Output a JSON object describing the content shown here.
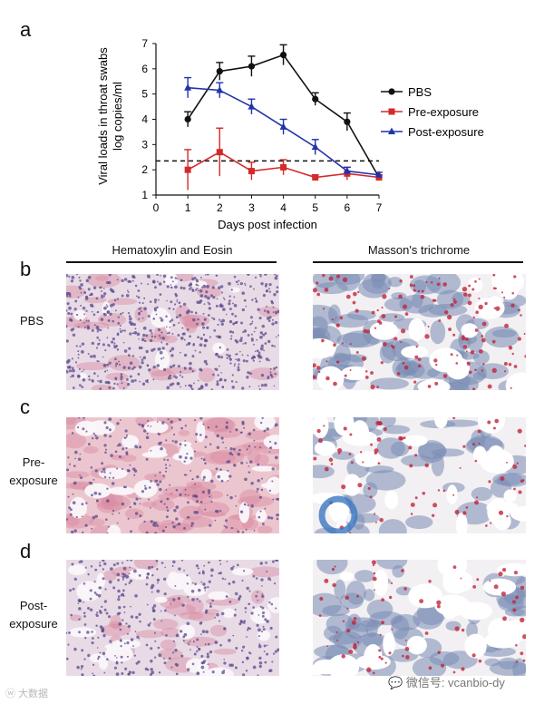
{
  "panel_letters": {
    "a": "a",
    "b": "b",
    "c": "c",
    "d": "d"
  },
  "chart_data": {
    "type": "line",
    "xlabel": "Days post infection",
    "ylabel_line1": "Viral loads in throat swabs",
    "ylabel_line2": "log copies/ml",
    "xlim": [
      0,
      7
    ],
    "ylim": [
      1,
      7
    ],
    "x_ticks": [
      0,
      1,
      2,
      3,
      4,
      5,
      6,
      7
    ],
    "y_ticks": [
      1,
      2,
      3,
      4,
      5,
      6,
      7
    ],
    "threshold": 2.35,
    "legend_position": "right",
    "series": [
      {
        "name": "PBS",
        "color": "#111111",
        "marker": "circle",
        "x": [
          1,
          2,
          3,
          4,
          5,
          6,
          7
        ],
        "y": [
          4.0,
          5.9,
          6.1,
          6.55,
          4.8,
          3.9,
          1.7
        ],
        "err": [
          0.3,
          0.35,
          0.4,
          0.4,
          0.25,
          0.35,
          0.1
        ]
      },
      {
        "name": "Pre-exposure",
        "color": "#d42a2a",
        "marker": "square",
        "x": [
          1,
          2,
          3,
          4,
          5,
          6,
          7
        ],
        "y": [
          2.0,
          2.7,
          1.95,
          2.1,
          1.7,
          1.85,
          1.7
        ],
        "err": [
          0.8,
          0.95,
          0.35,
          0.3,
          0.1,
          0.25,
          0.1
        ]
      },
      {
        "name": "Post-exposure",
        "color": "#2233aa",
        "marker": "triangle",
        "x": [
          1,
          2,
          3,
          4,
          5,
          6,
          7
        ],
        "y": [
          5.25,
          5.15,
          4.5,
          3.7,
          2.9,
          1.95,
          1.8
        ],
        "err": [
          0.4,
          0.3,
          0.3,
          0.3,
          0.3,
          0.15,
          0.1
        ]
      }
    ]
  },
  "histology": {
    "col_titles": [
      "Hematoxylin and Eosin",
      "Masson's trichrome"
    ],
    "rows": [
      {
        "line1": "PBS",
        "line2": ""
      },
      {
        "line1": "Pre-",
        "line2": "exposure"
      },
      {
        "line1": "Post-",
        "line2": "exposure"
      }
    ],
    "stain_colors": {
      "he_background": "#e8dbe6",
      "he_nuclei": "#5a4a8c",
      "he_eosin": "#d98aa0",
      "mt_background": "#f2f0f2",
      "mt_blue": "#7a8cb5",
      "mt_red": "#c2243a"
    }
  },
  "watermarks": {
    "left": "大数据",
    "right": "微信号: vcanbio-dy"
  }
}
